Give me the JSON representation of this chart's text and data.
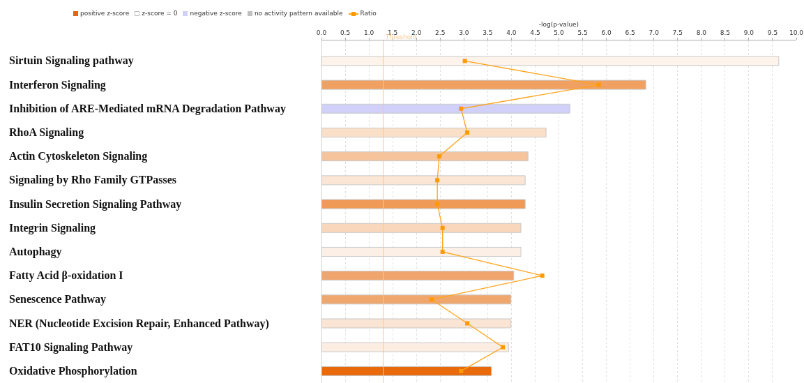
{
  "chart_data": {
    "type": "bar",
    "orientation": "horizontal",
    "xlabel": "-log(p-value)",
    "categories": [
      "Sirtuin Signaling pathway",
      "Interferon Signaling",
      "Inhibition of ARE-Mediated mRNA Degradation Pathway",
      "RhoA Signaling",
      "Actin Cytoskeleton Signaling",
      "Signaling by Rho Family GTPasses",
      "Insulin Secretion Signaling Pathway",
      "Integrin Signaling",
      "Autophagy",
      "Fatty Acid β-oxidation I",
      "Senescence Pathway",
      "NER (Nucleotide Excision Repair, Enhanced Pathway)",
      "FAT10 Signaling Pathway",
      "Oxidative Phosphorylation"
    ],
    "series": [
      {
        "name": "positive z-score",
        "color": "#e8650a",
        "values": [
          9.63,
          6.83,
          null,
          4.73,
          4.35,
          4.29,
          4.29,
          4.2,
          4.2,
          4.05,
          3.99,
          3.99,
          3.94,
          3.58
        ],
        "colors": [
          "#fdf3ea",
          "#f0a060",
          "#d0d0f8",
          "#fadfc9",
          "#f5c49c",
          "#fbe5d5",
          "#f09a58",
          "#f8d7bd",
          "#fcf0e6",
          "#f0a56e",
          "#f0a76e",
          "#fae4d3",
          "#fcede3",
          "#e86a0a"
        ]
      },
      {
        "name": "z-score = 0",
        "color": "#ffffff",
        "values": [
          null,
          null,
          null,
          null,
          null,
          null,
          null,
          null,
          null,
          null,
          null,
          null,
          null,
          null
        ]
      },
      {
        "name": "negative z-score",
        "color": "#d0d0f8",
        "values": [
          null,
          null,
          5.23,
          null,
          null,
          null,
          null,
          null,
          null,
          null,
          null,
          null,
          null,
          null
        ],
        "colors": [
          "#d0d0f8",
          "#d0d0f8",
          "#d0d0f8",
          "#d0d0f8",
          "#d0d0f8",
          "#d0d0f8",
          "#d0d0f8",
          "#d0d0f8",
          "#d0d0f8",
          "#d0d0f8",
          "#d0d0f8",
          "#d0d0f8",
          "#d0d0f8",
          "#d0d0f8"
        ]
      },
      {
        "name": "no activity pattern available",
        "color": "#c0c0c0",
        "values": [
          null,
          null,
          null,
          null,
          null,
          null,
          null,
          null,
          null,
          null,
          null,
          null,
          null,
          null
        ]
      },
      {
        "name": "Ratio",
        "type": "line",
        "color": "#ffa31a",
        "values": [
          3.02,
          5.84,
          2.94,
          3.07,
          2.48,
          2.44,
          2.44,
          2.55,
          2.55,
          4.65,
          2.32,
          3.07,
          3.82,
          2.94
        ]
      }
    ],
    "marker": "square",
    "xlim": [
      0,
      10
    ],
    "xticks": [
      {
        "value": 0,
        "label": "0.0"
      },
      0.5,
      {
        "value": 1,
        "label": "1.0"
      },
      1.5,
      {
        "value": 2,
        "label": "2.0"
      },
      2.5,
      {
        "value": 3,
        "label": "3.0"
      },
      3.5,
      {
        "value": 4,
        "label": "4.0"
      },
      4.5,
      {
        "value": 5,
        "label": "5.0"
      },
      5.5,
      {
        "value": 6,
        "label": "6.0"
      },
      6.5,
      {
        "value": 7,
        "label": "7.0"
      },
      7.5,
      {
        "value": 8,
        "label": "8.0"
      },
      8.5,
      {
        "value": 9,
        "label": "9.0"
      },
      9.5,
      {
        "value": 10,
        "label": "10.0"
      }
    ],
    "ref_lines": [
      {
        "axis": "x",
        "value": 1.3,
        "label": "Threshold",
        "color": "#ffc68a"
      }
    ],
    "grid": "x",
    "legend": "top left"
  }
}
